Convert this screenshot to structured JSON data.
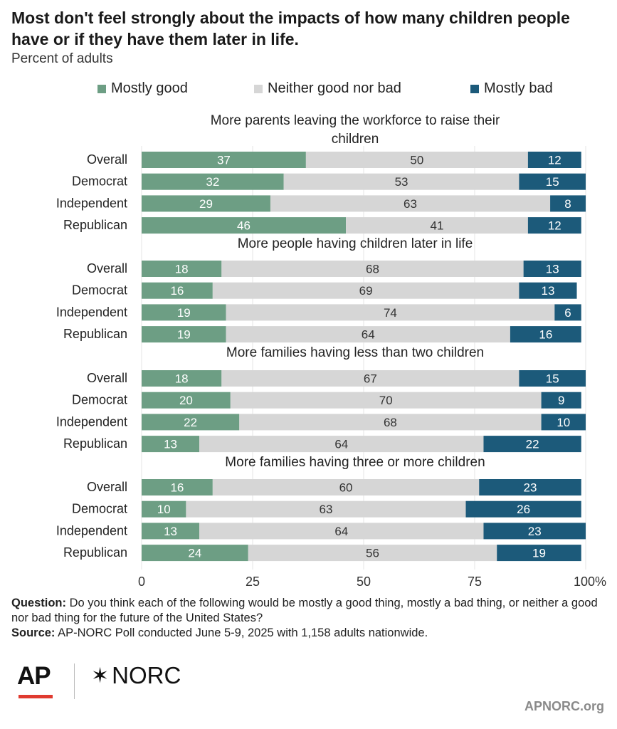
{
  "title": "Most don't feel strongly about the impacts of how many children people have or if they have them later in life.",
  "subtitle": "Percent of adults",
  "legend": [
    {
      "label": "Mostly good",
      "color": "#6d9e84"
    },
    {
      "label": "Neither good nor bad",
      "color": "#d6d6d6"
    },
    {
      "label": "Mostly bad",
      "color": "#1c5a7a"
    }
  ],
  "footer": {
    "question_label": "Question:",
    "question_text": "Do you think each of the following would be mostly a good thing, mostly a bad thing, or neither a good nor bad thing for the future of the United States?",
    "source_label": "Source:",
    "source_text": "AP-NORC Poll conducted June 5-9, 2025 with 1,158 adults nationwide."
  },
  "logos": {
    "ap": "AP",
    "norc": "NORC"
  },
  "site": "APNORC.org",
  "chart_data": {
    "type": "bar",
    "orientation": "horizontal-stacked",
    "xlim": [
      0,
      100
    ],
    "xticks": [
      "0",
      "25",
      "50",
      "75",
      "100%"
    ],
    "tick_values": [
      0,
      25,
      50,
      75,
      100
    ],
    "series_names": [
      "Mostly good",
      "Neither good nor bad",
      "Mostly bad"
    ],
    "colors": [
      "#6d9e84",
      "#d6d6d6",
      "#1c5a7a"
    ],
    "groups": [
      {
        "title": "More parents leaving the workforce to raise their children",
        "rows": [
          {
            "label": "Overall",
            "values": [
              37,
              50,
              12
            ]
          },
          {
            "label": "Democrat",
            "values": [
              32,
              53,
              15
            ]
          },
          {
            "label": "Independent",
            "values": [
              29,
              63,
              8
            ]
          },
          {
            "label": "Republican",
            "values": [
              46,
              41,
              12
            ]
          }
        ]
      },
      {
        "title": "More people having children later in life",
        "rows": [
          {
            "label": "Overall",
            "values": [
              18,
              68,
              13
            ]
          },
          {
            "label": "Democrat",
            "values": [
              16,
              69,
              13
            ]
          },
          {
            "label": "Independent",
            "values": [
              19,
              74,
              6
            ]
          },
          {
            "label": "Republican",
            "values": [
              19,
              64,
              16
            ]
          }
        ]
      },
      {
        "title": "More families having less than two children",
        "rows": [
          {
            "label": "Overall",
            "values": [
              18,
              67,
              15
            ]
          },
          {
            "label": "Democrat",
            "values": [
              20,
              70,
              9
            ]
          },
          {
            "label": "Independent",
            "values": [
              22,
              68,
              10
            ]
          },
          {
            "label": "Republican",
            "values": [
              13,
              64,
              22
            ]
          }
        ]
      },
      {
        "title": "More families having three or more children",
        "rows": [
          {
            "label": "Overall",
            "values": [
              16,
              60,
              23
            ]
          },
          {
            "label": "Democrat",
            "values": [
              10,
              63,
              26
            ]
          },
          {
            "label": "Independent",
            "values": [
              13,
              64,
              23
            ]
          },
          {
            "label": "Republican",
            "values": [
              24,
              56,
              19
            ]
          }
        ]
      }
    ]
  }
}
